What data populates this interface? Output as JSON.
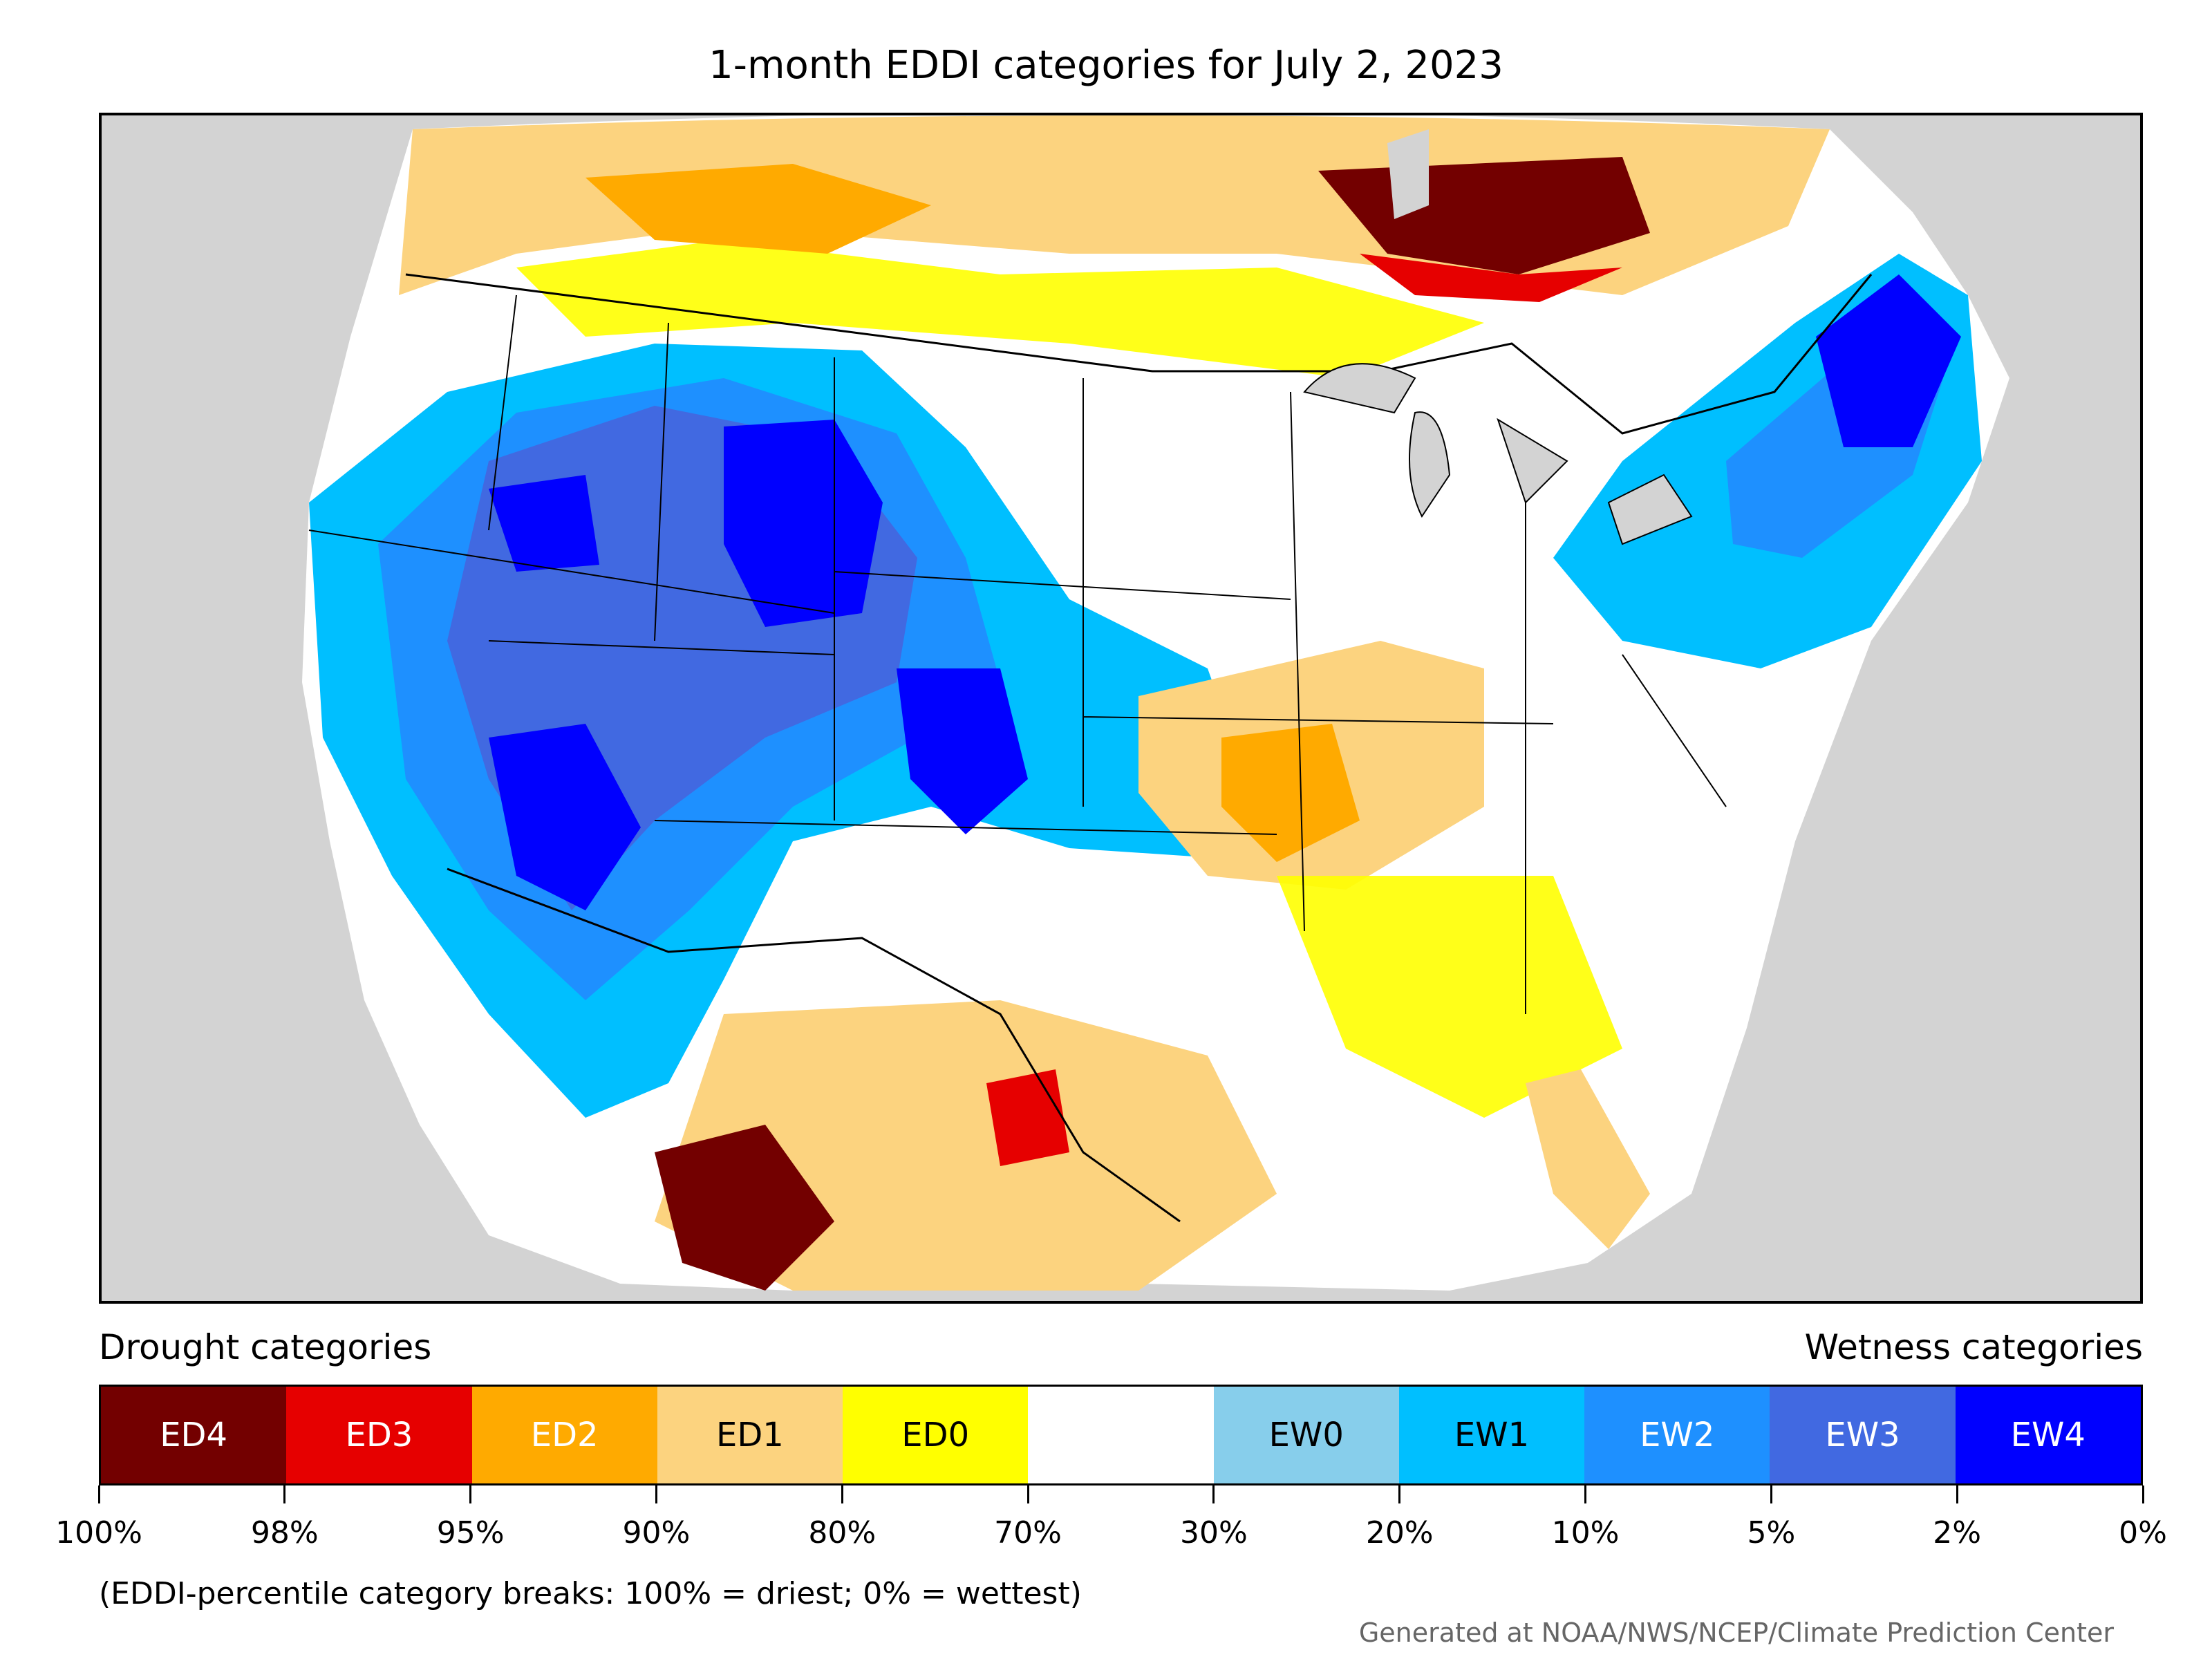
{
  "title": "1-month EDDI categories for July 2, 2023",
  "legend": {
    "drought_title": "Drought categories",
    "wetness_title": "Wetness categories",
    "categories": [
      {
        "label": "ED4",
        "color": "#730000",
        "text_color": "#ffffff"
      },
      {
        "label": "ED3",
        "color": "#e60000",
        "text_color": "#ffffff"
      },
      {
        "label": "ED2",
        "color": "#ffaa00",
        "text_color": "#ffffff"
      },
      {
        "label": "ED1",
        "color": "#fcd37f",
        "text_color": "#000000"
      },
      {
        "label": "ED0",
        "color": "#ffff00",
        "text_color": "#000000"
      },
      {
        "label": "",
        "color": "#ffffff",
        "text_color": "#000000"
      },
      {
        "label": "EW0",
        "color": "#87ceeb",
        "text_color": "#000000"
      },
      {
        "label": "EW1",
        "color": "#00bfff",
        "text_color": "#000000"
      },
      {
        "label": "EW2",
        "color": "#1e90ff",
        "text_color": "#ffffff"
      },
      {
        "label": "EW3",
        "color": "#4169e1",
        "text_color": "#ffffff"
      },
      {
        "label": "EW4",
        "color": "#0000ff",
        "text_color": "#ffffff"
      }
    ],
    "ticks": [
      "100%",
      "98%",
      "95%",
      "90%",
      "80%",
      "70%",
      "30%",
      "20%",
      "10%",
      "5%",
      "2%",
      "0%"
    ]
  },
  "footnote": "(EDDI-percentile category breaks: 100% = driest; 0% = wettest)",
  "credit": "Generated at NOAA/NWS/NCEP/Climate Prediction Center",
  "map_colors": {
    "background": "#d3d3d3",
    "water": "#d3d3d3"
  }
}
